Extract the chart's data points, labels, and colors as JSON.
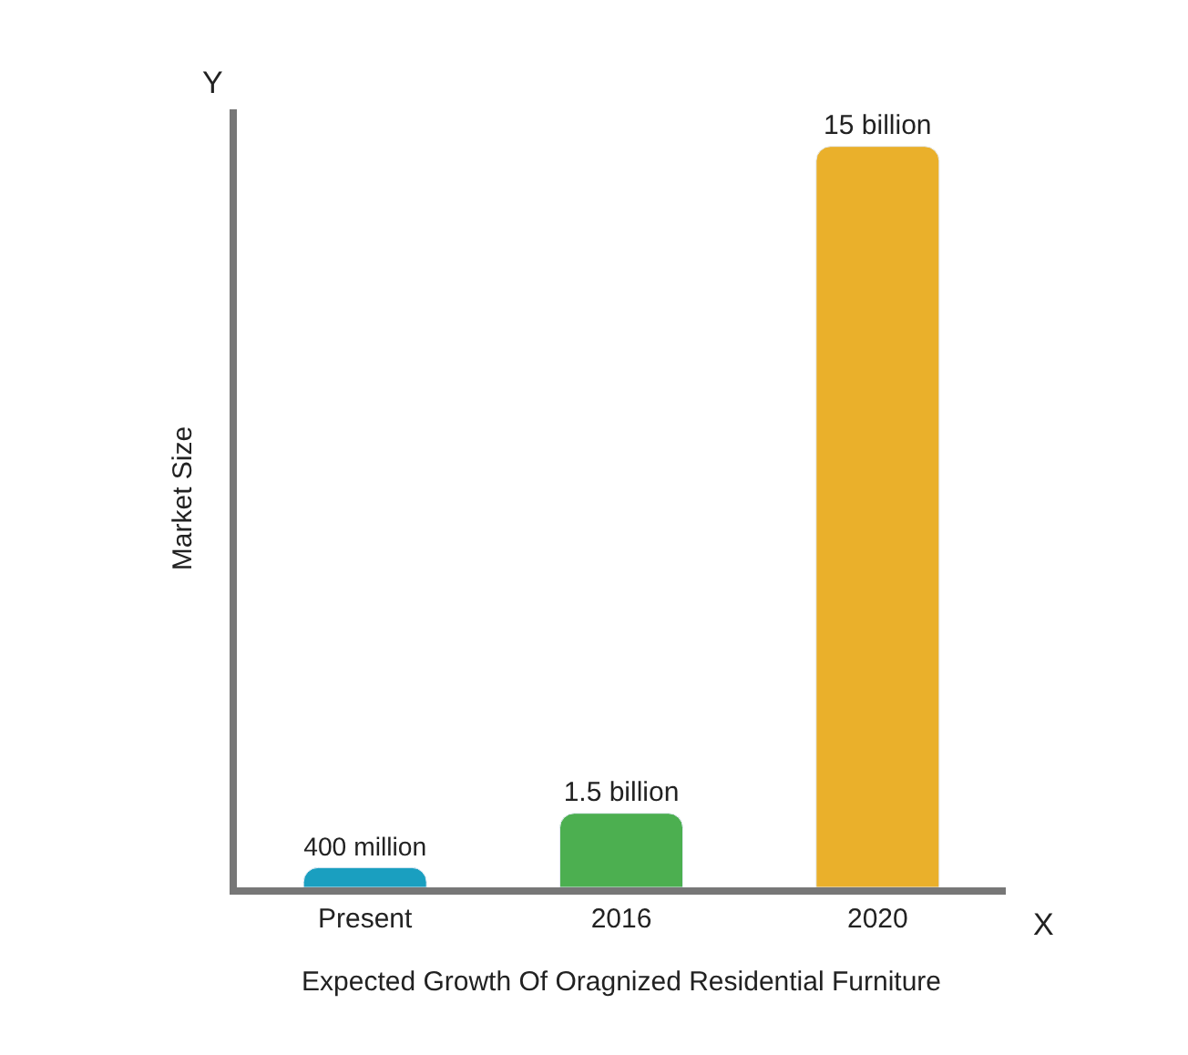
{
  "chart_data": {
    "type": "bar",
    "xlabel": "Expected Growth Of Oragnized Residential Furniture",
    "ylabel": "Market Size",
    "annotations": [
      "Y",
      "X"
    ],
    "categories": [
      "Present",
      "2016",
      "2020"
    ],
    "values": [
      400000000,
      1500000000,
      15000000000
    ],
    "value_labels": [
      "400 million",
      "1.5 billion",
      "15 billion"
    ],
    "colors": [
      "#1a9fc0",
      "#4caf50",
      "#eab02b"
    ],
    "tick_labels": "x"
  }
}
